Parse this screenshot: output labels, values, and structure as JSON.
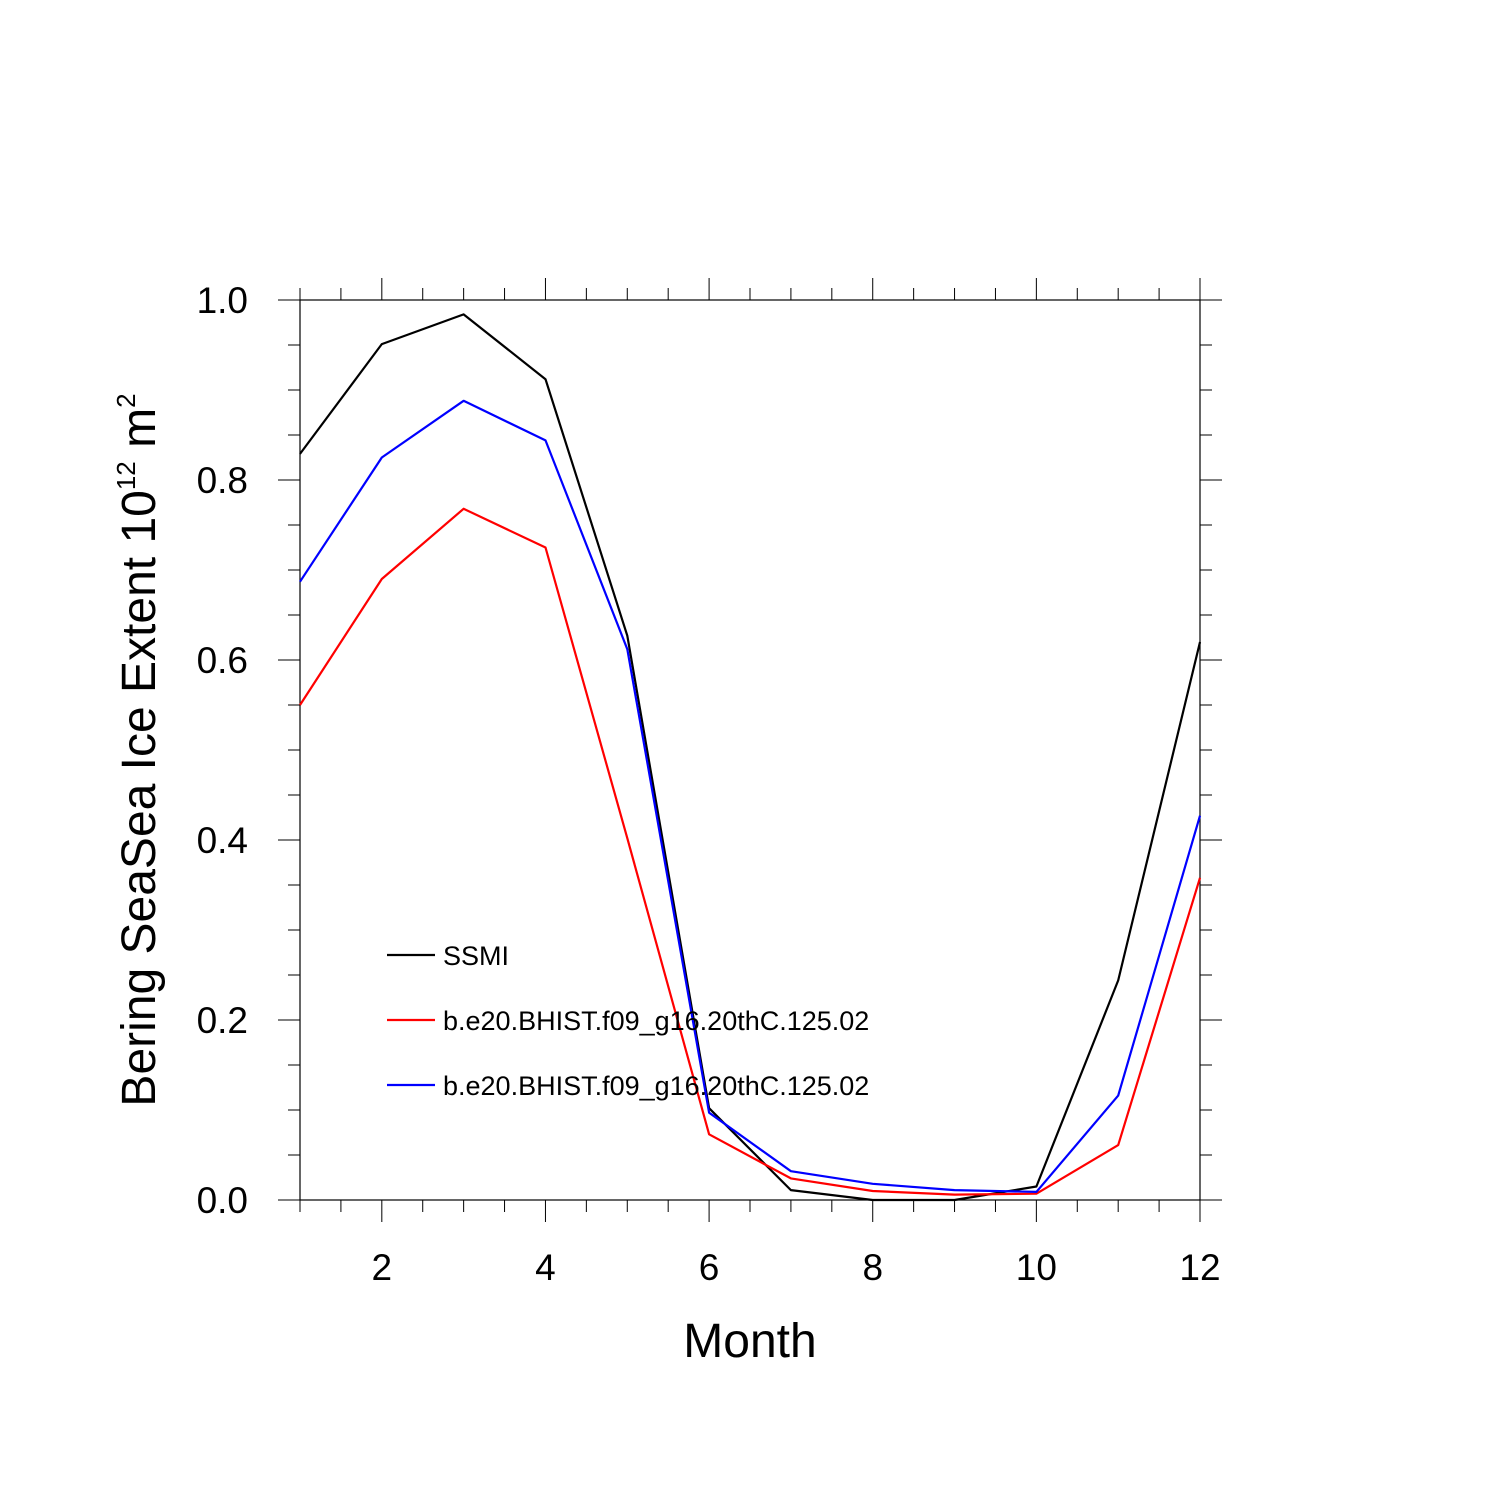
{
  "chart_data": {
    "type": "line",
    "title": "",
    "xlabel": "Month",
    "ylabel_main": "Bering SeaSea Ice Extent 10",
    "ylabel_exponent": "12",
    "ylabel_unit": " m",
    "ylabel_unit_exponent": "2",
    "xlim": [
      1,
      12
    ],
    "ylim": [
      0.0,
      1.0
    ],
    "x_ticks": [
      2,
      4,
      6,
      8,
      10,
      12
    ],
    "x_tick_labels": [
      "2",
      "4",
      "6",
      "8",
      "10",
      "12"
    ],
    "y_ticks": [
      0.0,
      0.2,
      0.4,
      0.6,
      0.8,
      1.0
    ],
    "y_tick_labels": [
      "0.0",
      "0.2",
      "0.4",
      "0.6",
      "0.8",
      "1.0"
    ],
    "x": [
      1,
      2,
      3,
      4,
      5,
      6,
      7,
      8,
      9,
      10,
      11,
      12
    ],
    "legend_position": "center-left",
    "series": [
      {
        "name": "SSMI",
        "color": "#000000",
        "values": [
          0.829,
          0.951,
          0.984,
          0.912,
          0.627,
          0.102,
          0.011,
          0.0,
          0.0,
          0.015,
          0.244,
          0.62
        ]
      },
      {
        "name": "b.e20.BHIST.f09_g16.20thC.125.02",
        "color": "#ff0000",
        "values": [
          0.55,
          0.69,
          0.768,
          0.725,
          0.402,
          0.073,
          0.024,
          0.01,
          0.006,
          0.007,
          0.061,
          0.358
        ]
      },
      {
        "name": "b.e20.BHIST.f09_g16.20thC.125.02",
        "color": "#0000ff",
        "values": [
          0.687,
          0.825,
          0.888,
          0.844,
          0.612,
          0.097,
          0.032,
          0.018,
          0.011,
          0.009,
          0.116,
          0.427
        ]
      }
    ]
  }
}
